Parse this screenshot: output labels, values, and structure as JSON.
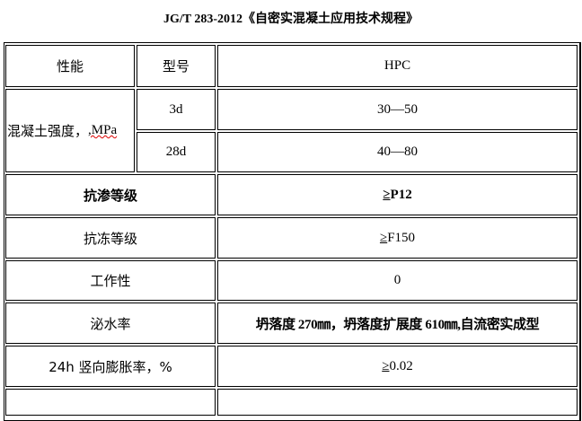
{
  "title": "JG/T 283-2012《自密实混凝土应用技术规程》",
  "header": {
    "property": "性能",
    "model": "型号",
    "type": "HPC"
  },
  "strength": {
    "label": "混凝土强度，",
    "unit": ",MPa",
    "rows": [
      {
        "age": "3d",
        "value": "30—50"
      },
      {
        "age": "28d",
        "value": "40—80"
      }
    ]
  },
  "rows": [
    {
      "label": "抗渗等级",
      "ge": "≥",
      "value": "P12",
      "bold": true
    },
    {
      "label": "抗冻等级",
      "ge": "≥",
      "value": "F150"
    },
    {
      "label": "工作性",
      "ge": "",
      "value": "0"
    },
    {
      "label": "泌水率",
      "ge": "",
      "value": "坍落度 270㎜，坍落度扩展度 610㎜,自流密实成型",
      "bold": true
    },
    {
      "label": "24h 竖向膨胀率，%",
      "ge": "≥",
      "value": "0.02"
    }
  ]
}
